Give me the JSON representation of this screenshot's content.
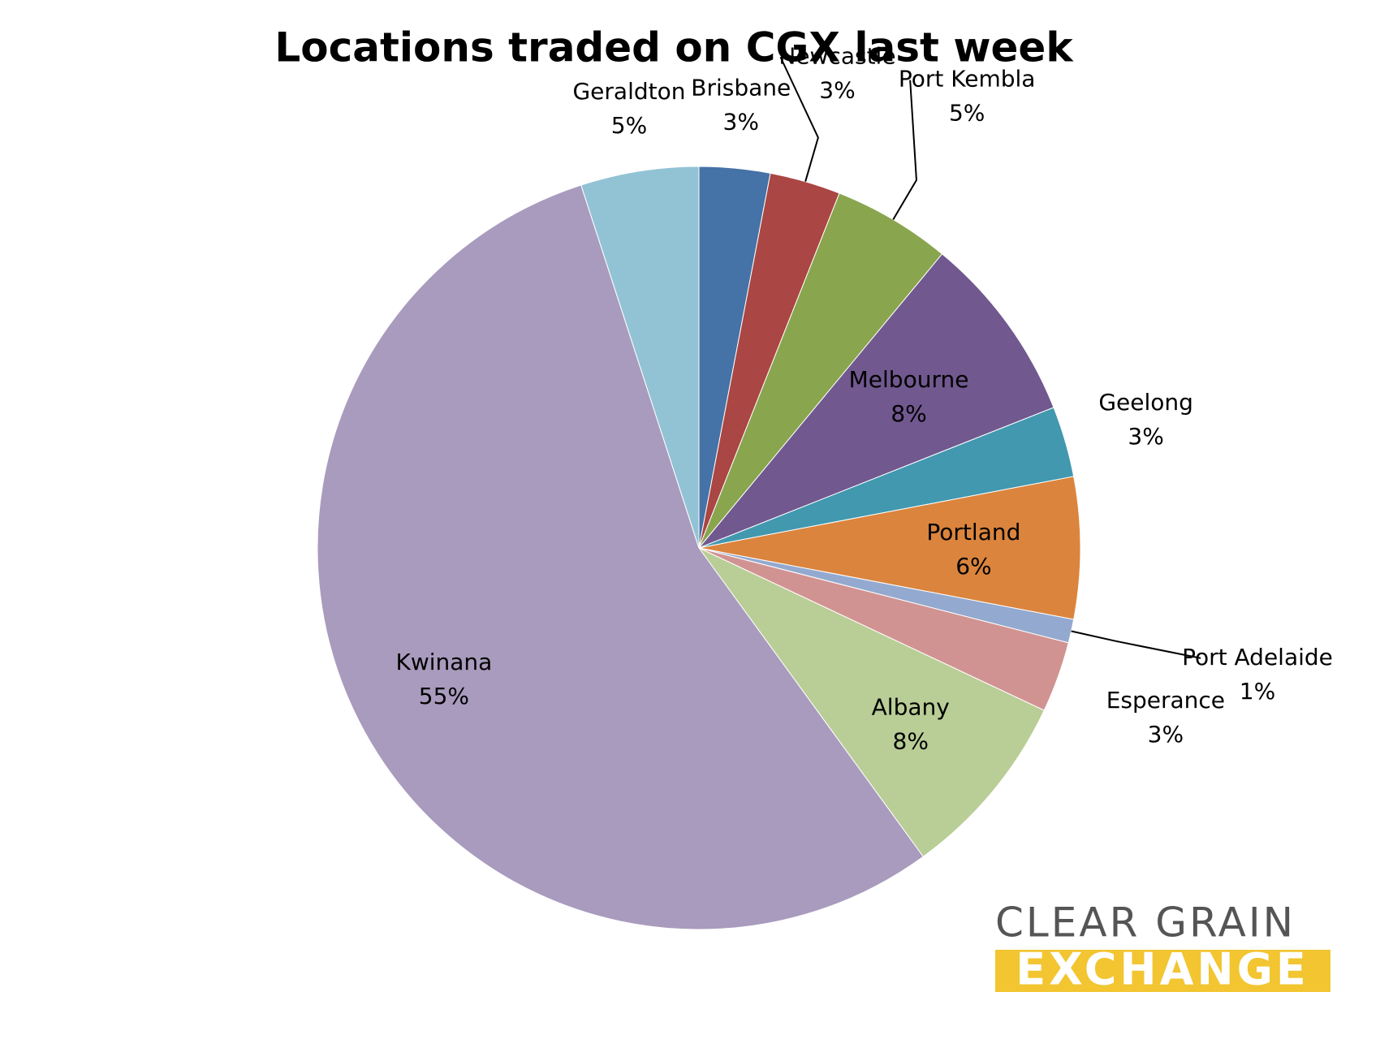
{
  "chart_data": {
    "type": "pie",
    "title": "Locations traded on CGX last week",
    "categories": [
      "Brisbane",
      "Newcastle",
      "Port Kembla",
      "Melbourne",
      "Geelong",
      "Portland",
      "Port Adelaide",
      "Esperance",
      "Albany",
      "Kwinana",
      "Geraldton"
    ],
    "values": [
      3,
      3,
      5,
      8,
      3,
      6,
      1,
      3,
      8,
      55,
      5
    ],
    "value_labels": [
      "3%",
      "3%",
      "5%",
      "8%",
      "3%",
      "6%",
      "1%",
      "3%",
      "8%",
      "55%",
      "5%"
    ],
    "colors": [
      "#4572a7",
      "#aa4643",
      "#89a54e",
      "#71588f",
      "#4198af",
      "#db843d",
      "#93a9cf",
      "#d19392",
      "#b9cd96",
      "#a99bbd",
      "#92c3d5"
    ]
  },
  "logo": {
    "line1": "CLEAR GRAIN",
    "line2": "EXCHANGE"
  }
}
